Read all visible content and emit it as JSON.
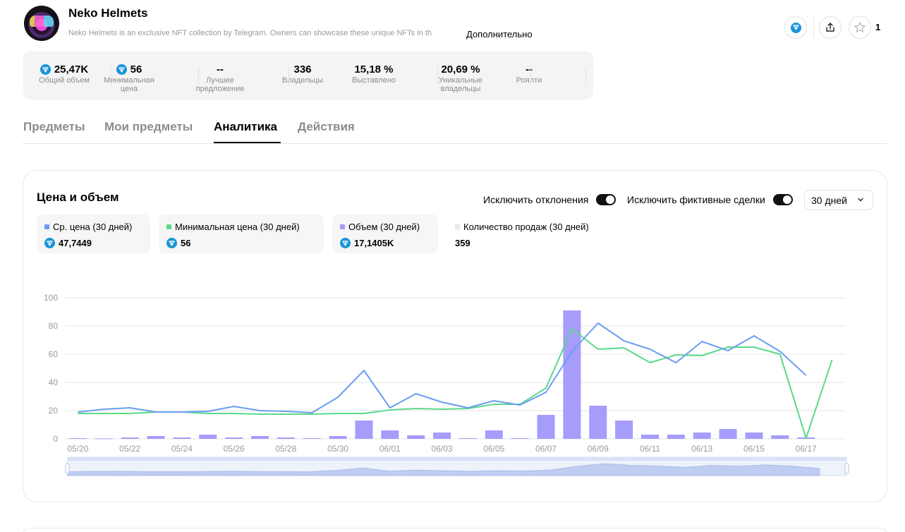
{
  "collection": {
    "name": "Neko Helmets",
    "description": "Neko Helmets is an exclusive NFT collection by Telegram. Owners can showcase these unique NFTs in th",
    "more_label": "Дополнительно",
    "likes": "1"
  },
  "stats": [
    {
      "value": "25,47K",
      "label": "Общий объем",
      "ton": true
    },
    {
      "value": "56",
      "label": "Минимальная цена",
      "ton": true
    },
    {
      "value": "--",
      "label": "Лучшее предложение",
      "ton": false
    },
    {
      "value": "336",
      "label": "Владельцы",
      "ton": false
    },
    {
      "value": "15,18 %",
      "label": "Выставлено",
      "ton": false
    },
    {
      "value": "20,69 %",
      "label": "Уникальные владельцы",
      "ton": false
    },
    {
      "value": "--",
      "label": "Роялти",
      "ton": false
    }
  ],
  "tabs": [
    {
      "label": "Предметы",
      "active": false
    },
    {
      "label": "Мои предметы",
      "active": false
    },
    {
      "label": "Аналитика",
      "active": true
    },
    {
      "label": "Действия",
      "active": false
    }
  ],
  "analytics": {
    "title": "Цена и объем",
    "exclude_outliers_label": "Исключить отклонения",
    "exclude_fake_label": "Исключить фиктивные сделки",
    "period": "30 дней"
  },
  "legend": [
    {
      "name": "Ср. цена (30 дней)",
      "value": "47,7449",
      "color": "#6a9ef0",
      "ton": true
    },
    {
      "name": "Минимальная цена (30 дней)",
      "value": "56",
      "color": "#5ad98a",
      "ton": true
    },
    {
      "name": "Объем (30 дней)",
      "value": "17,1405K",
      "color": "#a59cfb",
      "ton": true
    },
    {
      "name": "Количество продаж (30 дней)",
      "value": "359",
      "color": "#e8e8e8",
      "ton": false
    }
  ],
  "colors": {
    "ton": "#1a94d9",
    "avg": "#6a9ef0",
    "min": "#5ad98a",
    "volume": "#a59cfb"
  },
  "chart_data": {
    "type": "bar+line",
    "categories": [
      "05/20",
      "05/21",
      "05/22",
      "05/23",
      "05/24",
      "05/25",
      "05/26",
      "05/27",
      "05/28",
      "05/29",
      "05/30",
      "05/31",
      "06/01",
      "06/02",
      "06/03",
      "06/04",
      "06/05",
      "06/06",
      "06/07",
      "06/08",
      "06/09",
      "06/10",
      "06/11",
      "06/12",
      "06/13",
      "06/14",
      "06/15",
      "06/16",
      "06/17",
      "06/18"
    ],
    "x_tick_labels": [
      "05/20",
      "05/22",
      "05/24",
      "05/26",
      "05/28",
      "05/30",
      "06/01",
      "06/03",
      "06/05",
      "06/07",
      "06/09",
      "06/11",
      "06/13",
      "06/15",
      "06/17"
    ],
    "y_ticks": [
      0,
      20,
      40,
      60,
      80,
      100
    ],
    "ylim": [
      0,
      100
    ],
    "grid": true,
    "series": [
      {
        "name": "Объем (30 дней)",
        "type": "bar",
        "values": [
          0.5,
          0.3,
          1,
          2,
          1,
          3,
          1,
          2,
          1,
          0.5,
          2,
          13,
          6,
          2.5,
          4.5,
          0.5,
          6,
          0.5,
          17,
          91,
          23.5,
          13,
          3,
          3,
          4.5,
          7,
          4.5,
          2.5,
          1,
          null
        ]
      },
      {
        "name": "Ср. цена (30 дней)",
        "type": "line",
        "values": [
          19,
          21,
          22,
          19,
          19,
          19.5,
          23,
          20,
          19.5,
          18.5,
          29.5,
          48.5,
          22,
          32,
          26,
          22,
          27,
          24,
          33,
          62,
          82,
          69.5,
          63.5,
          54,
          69,
          62.5,
          73,
          62,
          45,
          null
        ]
      },
      {
        "name": "Минимальная цена (30 дней)",
        "type": "line",
        "values": [
          18,
          18,
          18,
          19,
          19,
          18,
          18,
          17.5,
          17.5,
          17.5,
          18,
          18,
          20.5,
          21.5,
          21,
          21.5,
          24.5,
          24.5,
          36,
          78,
          63.5,
          64.5,
          54,
          59.5,
          59,
          65,
          65,
          60,
          0.5,
          56
        ]
      }
    ]
  }
}
